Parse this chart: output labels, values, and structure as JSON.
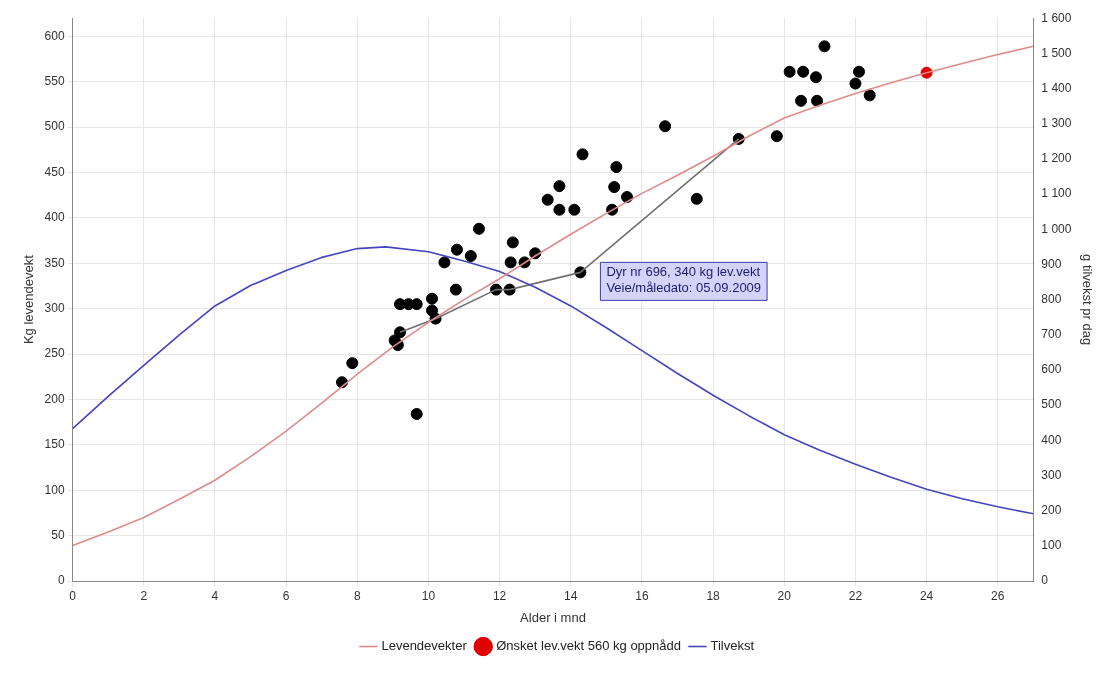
{
  "chart_data": {
    "type": "line",
    "xlabel": "Alder i mnd",
    "ylabel": "Kg levendevekt",
    "y2label": "g tilvekst pr dag",
    "xlim": [
      0,
      27
    ],
    "xticks": [
      0,
      2,
      4,
      6,
      8,
      10,
      12,
      14,
      16,
      18,
      20,
      22,
      24,
      26
    ],
    "ylim": [
      0,
      620
    ],
    "yticks": [
      0,
      50,
      100,
      150,
      200,
      250,
      300,
      350,
      400,
      450,
      500,
      550,
      600
    ],
    "y2lim": [
      0,
      1600
    ],
    "y2ticks": [
      0,
      100,
      200,
      300,
      400,
      500,
      600,
      700,
      800,
      900,
      {
        "value": 1000,
        "label": "1 000"
      },
      {
        "value": 1100,
        "label": "1 100"
      },
      {
        "value": 1200,
        "label": "1 200"
      },
      {
        "value": 1300,
        "label": "1 300"
      },
      {
        "value": 1400,
        "label": "1 400"
      },
      {
        "value": 1500,
        "label": "1 500"
      },
      {
        "value": 1600,
        "label": "1 600"
      }
    ],
    "grid": true,
    "legend": "bottom",
    "series": [
      {
        "name": "Levendevekter",
        "color": "#e08a8a",
        "x": [
          0,
          1,
          2,
          3,
          4,
          5,
          6,
          7,
          8,
          9,
          10,
          11,
          12,
          13,
          14,
          15,
          16,
          17,
          18,
          19,
          20,
          21,
          22,
          23,
          24,
          25,
          26,
          27
        ],
        "values": [
          39,
          54,
          70,
          90,
          111,
          137,
          165,
          196,
          228,
          258,
          285,
          310,
          333,
          358,
          382,
          405,
          427,
          447,
          468,
          490,
          510,
          524,
          537,
          549,
          560,
          570,
          580,
          589
        ]
      },
      {
        "name": "Ønsket lev.vekt 560 kg oppnådd",
        "type": "scatter",
        "color": "#e00000",
        "marker": "circle",
        "x": [
          24
        ],
        "values": [
          560
        ]
      },
      {
        "name": "Tilvekst",
        "color": "#4545c0",
        "axis": "y2",
        "x": [
          0,
          1,
          2,
          3,
          4,
          5,
          6,
          7,
          8,
          8.8,
          10,
          11,
          12,
          13,
          14,
          15,
          16,
          17,
          18,
          19,
          20,
          21,
          22,
          23,
          24,
          25,
          26,
          27
        ],
        "values": [
          433,
          525,
          613,
          700,
          782,
          840,
          883,
          920,
          945,
          950,
          936,
          910,
          880,
          835,
          782,
          720,
          655,
          590,
          528,
          470,
          416,
          372,
          332,
          295,
          261,
          234,
          211,
          191
        ]
      },
      {
        "color": "#707070",
        "x": [
          9.2,
          10.2,
          11.9,
          12.28,
          14.27,
          18.72
        ],
        "values": [
          274,
          289,
          321,
          321,
          340,
          487
        ]
      },
      {
        "type": "scatter",
        "color": "#000000",
        "marker": "circle",
        "x": [
          7.57,
          7.86,
          9.67,
          9.2,
          9.44,
          9.67,
          10.1,
          10.1,
          10.2,
          9.2,
          9.05,
          9.14,
          10.45,
          10.77,
          10.8,
          11.19,
          11.42,
          11.9,
          12.28,
          12.37,
          12.31,
          12.7,
          13.0,
          14.27,
          13.35,
          13.68,
          13.68,
          14.1,
          14.33,
          15.16,
          15.58,
          15.22,
          15.28,
          16.65,
          17.54,
          18.72,
          19.79,
          20.15,
          20.53,
          20.89,
          20.47,
          20.92,
          21.13,
          22.1,
          22.0,
          22.4
        ],
        "values": [
          219,
          240,
          184,
          305,
          305,
          305,
          311,
          298,
          289,
          274,
          265,
          260,
          351,
          321,
          365,
          358,
          388,
          321,
          321,
          373,
          351,
          351,
          361,
          340,
          420,
          409,
          435,
          409,
          470,
          409,
          423,
          434,
          456,
          501,
          421,
          487,
          490,
          561,
          561,
          555,
          529,
          529,
          589,
          561,
          548,
          535
        ]
      }
    ],
    "annotations": [
      {
        "text": "Dyr nr 696, 340 kg lev.vekt\nVeie/måledato: 05.09.2009",
        "x": 14.27,
        "y": 340
      }
    ]
  }
}
